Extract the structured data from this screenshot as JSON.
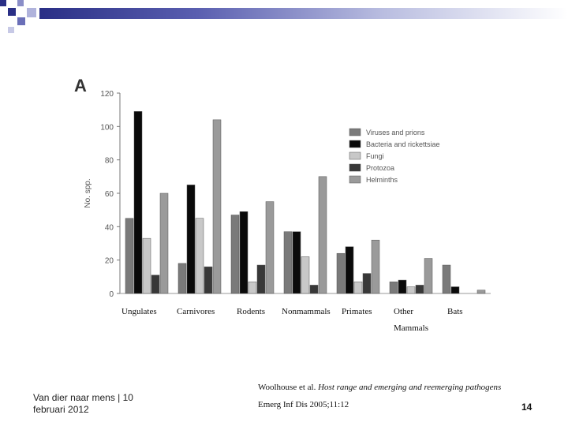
{
  "slide": {
    "footer_text": "Van dier naar mens | 10 februari 2012",
    "citation_authors": "Woolhouse et al.",
    "citation_title": "Host range and emerging and reemerging pathogens",
    "citation_journal": "Emerg Inf Dis 2005;11:12",
    "page_number": "14"
  },
  "chart_data": {
    "type": "bar",
    "panel_label": "A",
    "ylabel": "No. spp.",
    "ylim": [
      0,
      120
    ],
    "yticks": [
      0,
      20,
      40,
      60,
      80,
      100,
      120
    ],
    "categories": [
      "Ungulates",
      "Carnivores",
      "Rodents",
      "Nonmammals",
      "Primates",
      "Other Mammals",
      "Bats"
    ],
    "category_label_lines": [
      [
        "Ungulates"
      ],
      [
        "Carnivores"
      ],
      [
        "Rodents"
      ],
      [
        "Nonmammals"
      ],
      [
        "Primates"
      ],
      [
        "Other",
        "Mammals"
      ],
      [
        "Bats"
      ]
    ],
    "grid": false,
    "legend_position": "right",
    "series": [
      {
        "name": "Viruses and prions",
        "color": "#7a7a7a",
        "values": [
          45,
          18,
          47,
          37,
          24,
          7,
          17
        ]
      },
      {
        "name": "Bacteria and rickettsiae",
        "color": "#0a0a0a",
        "values": [
          109,
          65,
          49,
          37,
          28,
          8,
          4
        ]
      },
      {
        "name": "Fungi",
        "color": "#c8c8c8",
        "values": [
          33,
          45,
          7,
          22,
          7,
          4,
          0
        ]
      },
      {
        "name": "Protozoa",
        "color": "#383838",
        "values": [
          11,
          16,
          17,
          5,
          12,
          5,
          0
        ]
      },
      {
        "name": "Helminths",
        "color": "#9a9a9a",
        "values": [
          60,
          104,
          55,
          70,
          32,
          21,
          2
        ]
      }
    ]
  }
}
